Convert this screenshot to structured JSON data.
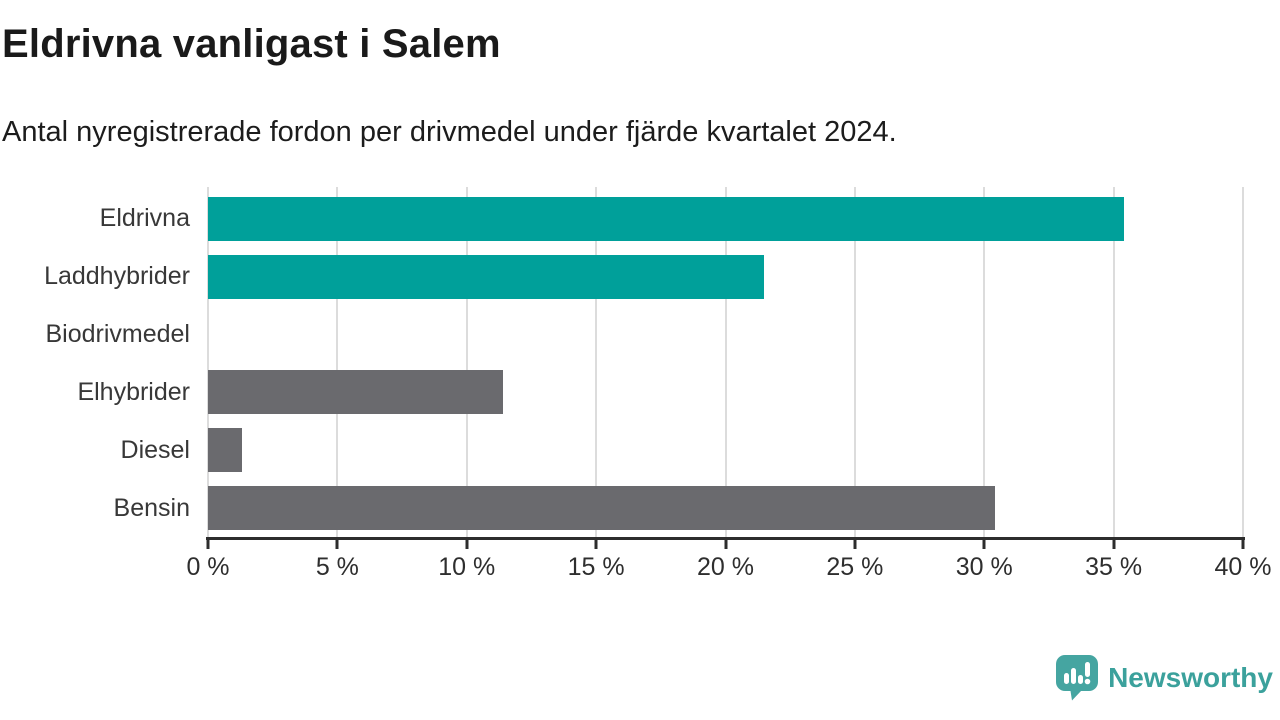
{
  "header": {
    "title": "Eldrivna vanligast i Salem",
    "subtitle": "Antal nyregistrerade fordon per drivmedel under fjärde kvartalet 2024."
  },
  "chart_data": {
    "type": "bar",
    "orientation": "horizontal",
    "title": "Eldrivna vanligast i Salem",
    "subtitle": "Antal nyregistrerade fordon per drivmedel under fjärde kvartalet 2024.",
    "categories": [
      "Eldrivna",
      "Laddhybrider",
      "Biodrivmedel",
      "Elhybrider",
      "Diesel",
      "Bensin"
    ],
    "values": [
      35.4,
      21.5,
      0,
      11.4,
      1.3,
      30.4
    ],
    "unit": "%",
    "bar_colors": [
      "#00a09a",
      "#00a09a",
      "#6a6a6e",
      "#6a6a6e",
      "#6a6a6e",
      "#6a6a6e"
    ],
    "xlim": [
      0,
      40
    ],
    "x_ticks": [
      0,
      5,
      10,
      15,
      20,
      25,
      30,
      35,
      40
    ],
    "x_tick_labels": [
      "0 %",
      "5 %",
      "10 %",
      "15 %",
      "20 %",
      "25 %",
      "30 %",
      "35 %",
      "40 %"
    ],
    "grid": true,
    "legend": "none"
  },
  "branding": {
    "logo_text": "Newsworthy",
    "logo_icon": "newsworthy-chart-speech-bubble-icon"
  },
  "colors": {
    "highlight": "#00a09a",
    "muted": "#6a6a6e",
    "grid": "#dcdcdc",
    "axis": "#2d2d2d",
    "logo": "#45a5a1",
    "logo_text": "#3ba19c"
  }
}
